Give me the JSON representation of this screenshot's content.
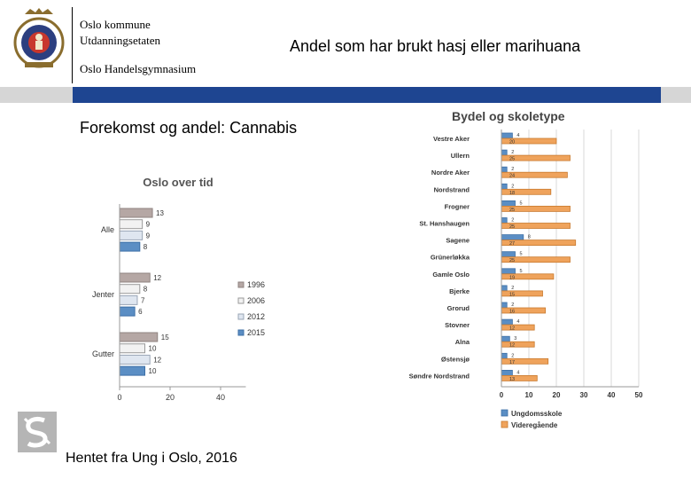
{
  "header": {
    "org_line1": "Oslo kommune",
    "org_line2": "Utdanningsetaten",
    "org_line3": "Oslo Handelsgymnasium",
    "title": "Andel som har brukt hasj eller marihuana"
  },
  "subtitle": "Forekomst og andel: Cannabis",
  "source": "Hentet fra Ung i Oslo, 2016",
  "colors": {
    "blue_bar": "#1e4591",
    "grey_bar": "#d6d6d6",
    "y1996": "#b5a7a4",
    "y2006": "#f2f2f2",
    "y2012": "#dfe6f0",
    "y2015": "#5b8ec4",
    "ungdom": "#5b8ec4",
    "vgs": "#efa35c"
  },
  "chart_data": [
    {
      "type": "bar",
      "orientation": "horizontal",
      "title": "Oslo over tid",
      "categories": [
        "Alle",
        "Jenter",
        "Gutter"
      ],
      "series": [
        {
          "name": "1996",
          "values": [
            13,
            12,
            15
          ]
        },
        {
          "name": "2006",
          "values": [
            9,
            8,
            10
          ]
        },
        {
          "name": "2012",
          "values": [
            9,
            7,
            12
          ]
        },
        {
          "name": "2015",
          "values": [
            8,
            6,
            10
          ]
        }
      ],
      "xlim": [
        0,
        50
      ],
      "xticks": [
        "0",
        "20",
        "40"
      ],
      "legend": "right"
    },
    {
      "type": "bar",
      "orientation": "horizontal",
      "title": "Bydel og skoletype",
      "categories": [
        "Vestre Aker",
        "Ullern",
        "Nordre Aker",
        "Nordstrand",
        "Frogner",
        "St. Hanshaugen",
        "Sagene",
        "Grünerløkka",
        "Gamle Oslo",
        "Bjerke",
        "Grorud",
        "Stovner",
        "Alna",
        "Østensjø",
        "Søndre Nordstrand"
      ],
      "series": [
        {
          "name": "Ungdomsskole",
          "values": [
            4,
            2,
            2,
            2,
            5,
            2,
            8,
            5,
            5,
            2,
            2,
            4,
            3,
            2,
            4
          ]
        },
        {
          "name": "Videregående",
          "values": [
            20,
            25,
            24,
            18,
            25,
            25,
            27,
            25,
            19,
            15,
            16,
            12,
            12,
            17,
            13
          ]
        }
      ],
      "xlim": [
        0,
        50
      ],
      "xticks": [
        "0",
        "10",
        "20",
        "30",
        "40",
        "50"
      ],
      "grid": true,
      "legend": "bottom"
    }
  ]
}
